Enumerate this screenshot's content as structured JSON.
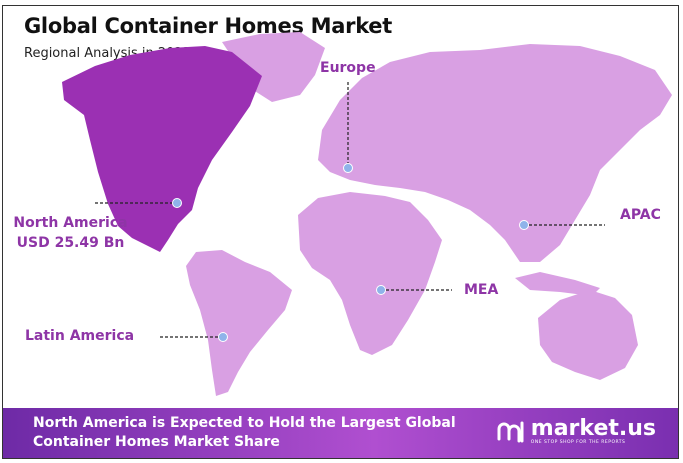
{
  "header": {
    "title": "Global Container Homes Market",
    "subtitle": "Regional Analysis in 2023"
  },
  "colors": {
    "highlight_region": "#9b30b3",
    "other_regions": "#d9a0e3",
    "label": "#8e35a6",
    "marker": "#8fb3ea"
  },
  "regions": [
    {
      "name": "North America",
      "value": "USD 25.49 Bn",
      "highlighted": true
    },
    {
      "name": "Europe"
    },
    {
      "name": "APAC"
    },
    {
      "name": "MEA"
    },
    {
      "name": "Latin America"
    }
  ],
  "footer": {
    "text_line1": "North America is Expected to Hold the Largest Global",
    "text_line2": "Container Homes Market Share",
    "logo_name": "market.us",
    "logo_tagline": "ONE STOP SHOP FOR THE REPORTS"
  }
}
